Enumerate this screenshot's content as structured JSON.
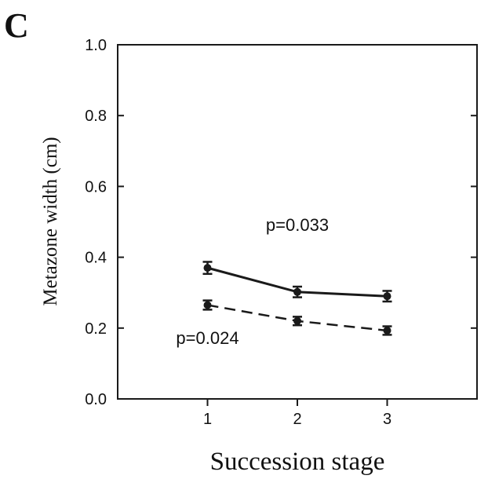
{
  "panel_label": "C",
  "chart_data": {
    "type": "line",
    "xlabel": "Succession stage",
    "ylabel": "Metazone width (cm)",
    "xlim": [
      0,
      4
    ],
    "ylim": [
      0.0,
      1.0
    ],
    "x_ticks": [
      1,
      2,
      3
    ],
    "x_tick_labels": [
      "1",
      "2",
      "3"
    ],
    "y_ticks": [
      0.0,
      0.2,
      0.4,
      0.6,
      0.8,
      1.0
    ],
    "y_tick_labels": [
      "0.0",
      "0.2",
      "0.4",
      "0.6",
      "0.8",
      "1.0"
    ],
    "grid": false,
    "series": [
      {
        "style": "solid",
        "marker": "circle",
        "color": "#1a1a1a",
        "x": [
          1,
          2,
          3
        ],
        "values": [
          0.37,
          0.302,
          0.29
        ],
        "error": [
          0.017,
          0.015,
          0.015
        ]
      },
      {
        "style": "dashed",
        "marker": "circle",
        "color": "#1a1a1a",
        "x": [
          1,
          2,
          3
        ],
        "values": [
          0.265,
          0.22,
          0.193
        ],
        "error": [
          0.013,
          0.012,
          0.012
        ]
      }
    ],
    "annotations": [
      {
        "text": "p=0.033",
        "x": 2.0,
        "y": 0.475
      },
      {
        "text": "p=0.024",
        "x": 1.0,
        "y": 0.155
      }
    ]
  }
}
